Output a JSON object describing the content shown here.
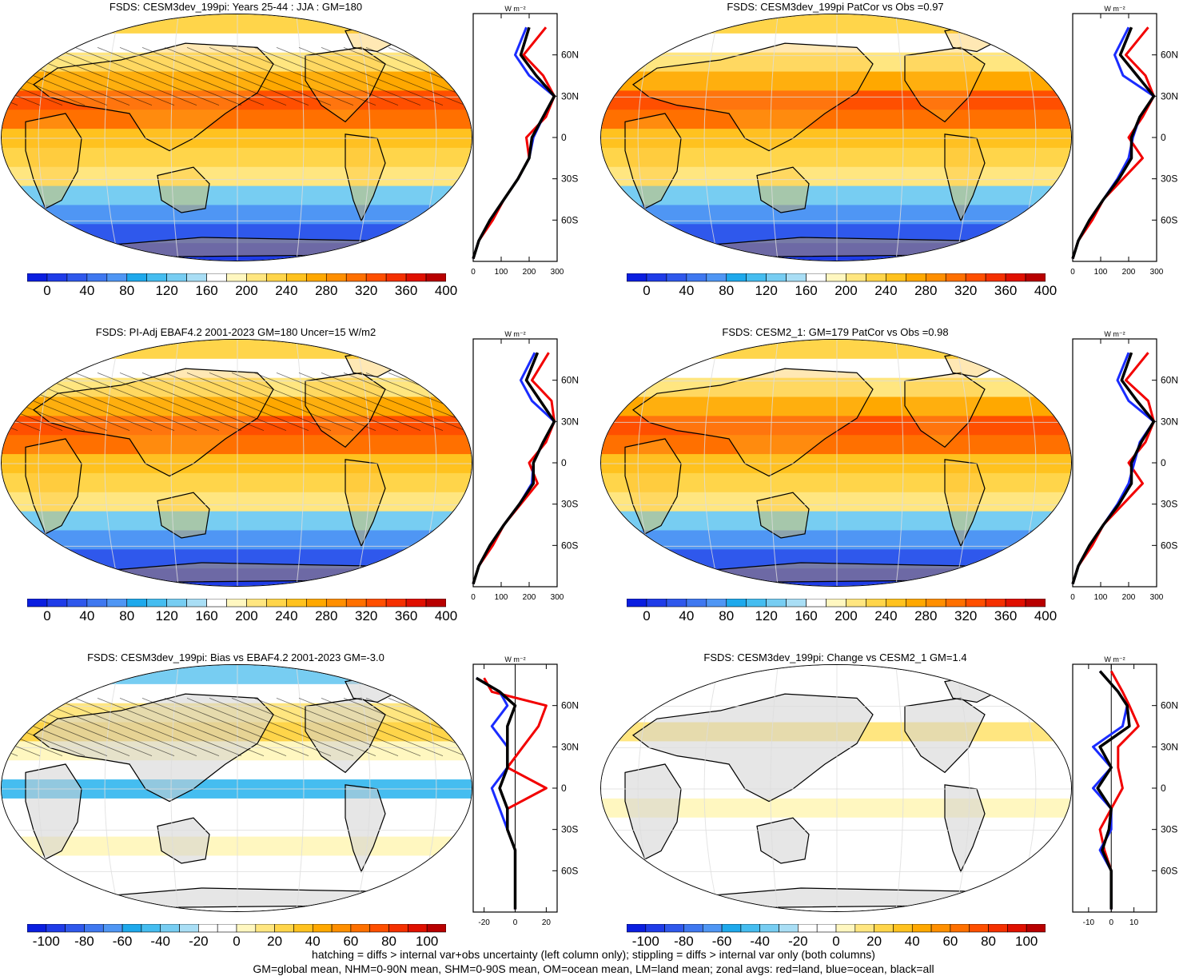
{
  "panels": [
    {
      "title": "FSDS: CESM3dev_199pi: Years 25-44 : JJA : GM=180",
      "kind": "abs",
      "hatch": true
    },
    {
      "title": "FSDS: CESM3dev_199pi PatCor vs Obs =0.97",
      "kind": "abs",
      "hatch": false
    },
    {
      "title": "FSDS: PI-Adj EBAF4.2 2001-2023 GM=180 Uncer=15 W/m2",
      "kind": "abs",
      "hatch": true
    },
    {
      "title": "FSDS: CESM2_1: GM=179 PatCor vs Obs =0.98",
      "kind": "abs",
      "hatch": false
    },
    {
      "title": "FSDS: CESM3dev_199pi: Bias vs EBAF4.2 2001-2023 GM=-3.0",
      "kind": "diff",
      "hatch": true
    },
    {
      "title": "FSDS: CESM3dev_199pi: Change vs CESM2_1 GM=1.4",
      "kind": "diff",
      "hatch": false
    }
  ],
  "zonal_unit": "W m⁻²",
  "lat_labels": [
    "60N",
    "30N",
    "0",
    "30S",
    "60S"
  ],
  "abs_colorbar": {
    "labels": [
      "0",
      "40",
      "80",
      "120",
      "160",
      "200",
      "240",
      "280",
      "320",
      "360",
      "400"
    ],
    "colors": [
      "#0a1ee0",
      "#1f3ce8",
      "#2f58ec",
      "#3f78f0",
      "#4f96f4",
      "#1ea9ec",
      "#45bdf0",
      "#77cdf2",
      "#a9def5",
      "#ffffff",
      "#fff7c0",
      "#ffe680",
      "#ffd54a",
      "#ffc21f",
      "#ffa800",
      "#ff8f00",
      "#ff7000",
      "#ff4f00",
      "#f53000",
      "#e01000",
      "#b80000"
    ]
  },
  "diff_colorbar": {
    "labels": [
      "-100",
      "-80",
      "-60",
      "-40",
      "-20",
      "0",
      "20",
      "40",
      "60",
      "80",
      "100"
    ],
    "colors": [
      "#0a1ee0",
      "#1f3ce8",
      "#2f58ec",
      "#3f78f0",
      "#4f96f4",
      "#1ea9ec",
      "#45bdf0",
      "#77cdf2",
      "#a9def5",
      "#ffffff",
      "#ffffff",
      "#fff7c0",
      "#ffe680",
      "#ffd54a",
      "#ffc21f",
      "#ffa800",
      "#ff8f00",
      "#ff7000",
      "#ff4f00",
      "#f53000",
      "#e01000",
      "#b80000"
    ]
  },
  "zonal_axes": {
    "abs": {
      "ticks": [
        "0",
        "100",
        "200",
        "300"
      ]
    },
    "bias": {
      "ticks": [
        "-20",
        "0",
        "20"
      ]
    },
    "change": {
      "ticks": [
        "-10",
        "0",
        "10"
      ]
    }
  },
  "footer": [
    "hatching = diffs > internal var+obs uncertainty (left column only); stippling = diffs > internal var only (both columns)",
    "GM=global mean, NHM=0-90N mean, SHM=0-90S mean, OM=ocean mean, LM=land mean; zonal avgs: red=land, blue=ocean, black=all"
  ],
  "chart_data": [
    {
      "type": "heatmap",
      "title": "FSDS: CESM3dev_199pi: Years 25-44 : JJA : GM=180",
      "colorbar": [
        0,
        400
      ],
      "zonal_mean": {
        "lat": [
          80,
          60,
          45,
          30,
          15,
          0,
          -15,
          -30,
          -45,
          -60,
          -75,
          -88
        ],
        "land": [
          260,
          180,
          250,
          290,
          260,
          190,
          200,
          160,
          110,
          70,
          20,
          0
        ],
        "ocean": [
          190,
          150,
          200,
          290,
          250,
          215,
          200,
          160,
          110,
          60,
          20,
          0
        ],
        "all": [
          200,
          170,
          225,
          290,
          250,
          210,
          200,
          160,
          110,
          60,
          20,
          0
        ]
      }
    },
    {
      "type": "heatmap",
      "title": "FSDS: CESM3dev_199pi PatCor vs Obs =0.97",
      "colorbar": [
        0,
        400
      ],
      "zonal_mean": {
        "lat": [
          80,
          60,
          45,
          30,
          15,
          0,
          -15,
          -30,
          -45,
          -60,
          -75,
          -88
        ],
        "land": [
          270,
          190,
          260,
          290,
          250,
          200,
          250,
          180,
          110,
          70,
          20,
          0
        ],
        "ocean": [
          200,
          150,
          180,
          290,
          240,
          215,
          200,
          160,
          110,
          60,
          20,
          0
        ],
        "all": [
          210,
          170,
          230,
          290,
          240,
          210,
          210,
          165,
          110,
          60,
          20,
          0
        ]
      }
    },
    {
      "type": "heatmap",
      "title": "FSDS: PI-Adj EBAF4.2 2001-2023 GM=180 Uncer=15 W/m2",
      "colorbar": [
        0,
        400
      ],
      "zonal_mean": {
        "lat": [
          80,
          60,
          45,
          30,
          15,
          0,
          -15,
          -30,
          -45,
          -60,
          -75,
          -88
        ],
        "land": [
          270,
          210,
          280,
          290,
          260,
          200,
          230,
          170,
          110,
          70,
          20,
          0
        ],
        "ocean": [
          220,
          170,
          210,
          290,
          250,
          215,
          210,
          165,
          110,
          60,
          20,
          0
        ],
        "all": [
          230,
          190,
          240,
          290,
          250,
          215,
          215,
          165,
          110,
          60,
          20,
          0
        ]
      }
    },
    {
      "type": "heatmap",
      "title": "FSDS: CESM2_1: GM=179 PatCor vs Obs =0.98",
      "colorbar": [
        0,
        400
      ],
      "zonal_mean": {
        "lat": [
          80,
          60,
          45,
          30,
          15,
          0,
          -15,
          -30,
          -45,
          -60,
          -75,
          -88
        ],
        "land": [
          270,
          190,
          270,
          290,
          260,
          200,
          250,
          180,
          110,
          70,
          20,
          0
        ],
        "ocean": [
          200,
          160,
          200,
          290,
          240,
          220,
          200,
          160,
          110,
          60,
          20,
          0
        ],
        "all": [
          210,
          175,
          230,
          290,
          245,
          210,
          210,
          165,
          110,
          60,
          20,
          0
        ]
      }
    },
    {
      "type": "heatmap",
      "title": "FSDS: CESM3dev_199pi: Bias vs EBAF4.2 2001-2023 GM=-3.0",
      "colorbar": [
        -100,
        100
      ],
      "zonal_mean": {
        "lat": [
          80,
          70,
          60,
          45,
          30,
          15,
          0,
          -15,
          -30,
          -45,
          -60,
          -75,
          -88
        ],
        "land": [
          -20,
          -15,
          20,
          15,
          5,
          -5,
          20,
          -5,
          -5,
          0,
          0,
          0,
          0
        ],
        "ocean": [
          -25,
          -10,
          -5,
          -15,
          -5,
          -5,
          -15,
          -10,
          -5,
          0,
          0,
          0,
          0
        ],
        "all": [
          -25,
          -10,
          0,
          -5,
          -5,
          -5,
          -10,
          -5,
          -5,
          0,
          0,
          0,
          0
        ]
      }
    },
    {
      "type": "heatmap",
      "title": "FSDS: CESM3dev_199pi: Change vs CESM2_1 GM=1.4",
      "colorbar": [
        -100,
        100
      ],
      "zonal_mean": {
        "lat": [
          85,
          70,
          60,
          45,
          30,
          15,
          0,
          -15,
          -30,
          -45,
          -60,
          -75,
          -88
        ],
        "land": [
          0,
          5,
          8,
          12,
          3,
          3,
          5,
          0,
          -5,
          -3,
          0,
          0,
          0
        ],
        "ocean": [
          -5,
          3,
          7,
          5,
          -8,
          0,
          -8,
          0,
          0,
          -5,
          0,
          0,
          0
        ],
        "all": [
          -5,
          3,
          7,
          8,
          -5,
          0,
          -6,
          0,
          -1,
          -4,
          0,
          0,
          0
        ]
      }
    }
  ]
}
